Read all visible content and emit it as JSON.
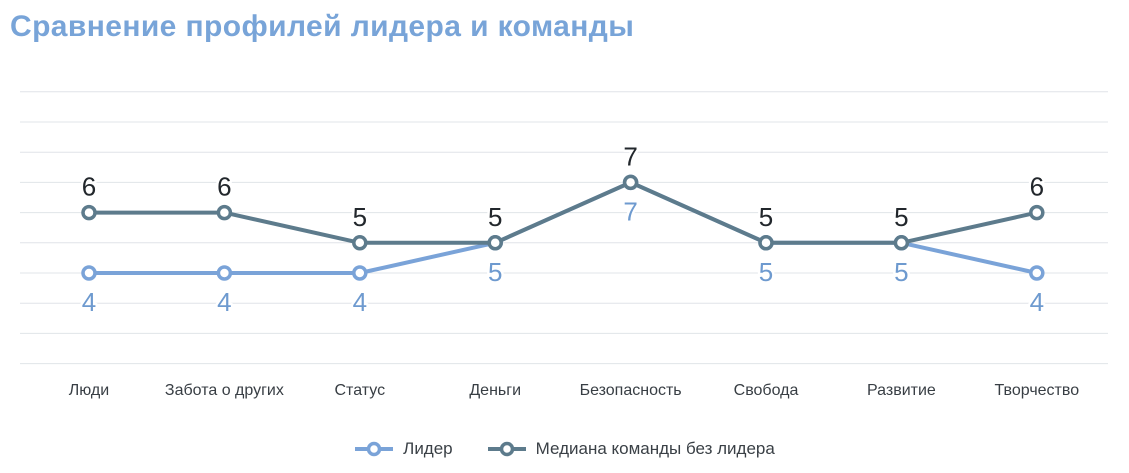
{
  "title": "Сравнение профилей лидера и команды",
  "colors": {
    "title": "#78a4d8",
    "grid": "#e0e4e8",
    "axis_label": "#383e44",
    "legend_text": "#3a4046",
    "background": "#ffffff"
  },
  "chart_data": {
    "type": "line",
    "title": "Сравнение профилей лидера и команды",
    "categories": [
      "Люди",
      "Забота о других",
      "Статус",
      "Деньги",
      "Безопасность",
      "Свобода",
      "Развитие",
      "Творчество"
    ],
    "series": [
      {
        "name": "Лидер",
        "values": [
          4,
          4,
          4,
          5,
          7,
          5,
          5,
          4
        ],
        "color": "#7aa3d8",
        "label_color": "#6e9acf",
        "label_position": "below"
      },
      {
        "name": "Медиана команды без лидера",
        "values": [
          6,
          6,
          5,
          5,
          7,
          5,
          5,
          6
        ],
        "color": "#5d7b8c",
        "label_color": "#22272c",
        "label_position": "above"
      }
    ],
    "ylim": [
      1,
      10
    ],
    "xlabel": "",
    "ylabel": "",
    "grid": "horizontal-only",
    "y_axis_labels": "hidden",
    "marker": "open-circle",
    "data_labels": true,
    "legend_position": "bottom"
  }
}
